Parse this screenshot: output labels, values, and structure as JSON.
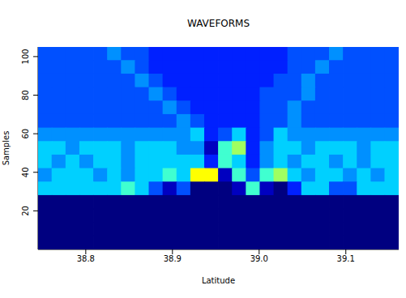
{
  "chart_data": {
    "type": "heatmap",
    "title": "WAVEFORMS",
    "x_label": "Latitude",
    "y_label": "Samples",
    "xlim": [
      38.745,
      39.161
    ],
    "xticks": [
      38.8,
      38.9,
      {
        "value": 39,
        "label": "39.0"
      },
      39.1
    ],
    "ylim": [
      0,
      105
    ],
    "yticks": [
      20,
      40,
      60,
      80,
      100
    ],
    "x": [
      38.753,
      38.769,
      38.785,
      38.801,
      38.817,
      38.833,
      38.849,
      38.865,
      38.881,
      38.897,
      38.913,
      38.929,
      38.945,
      38.961,
      38.977,
      38.993,
      39.009,
      39.025,
      39.041,
      39.057,
      39.073,
      39.089,
      39.105,
      39.121,
      39.137,
      39.153
    ],
    "y": [
      101.5,
      94.5,
      87.5,
      80.5,
      73.5,
      66.5,
      59.5,
      52.5,
      45.5,
      38.5,
      31.5,
      24.5,
      17.5,
      10.5,
      3.5
    ],
    "zlim": [
      0,
      9
    ],
    "cells": [
      [
        3,
        3,
        3,
        3,
        3,
        4,
        3,
        3,
        2,
        2,
        2,
        2,
        2,
        2,
        2,
        2,
        2,
        2,
        3,
        3,
        3,
        4,
        3,
        3,
        3,
        3
      ],
      [
        3,
        3,
        3,
        3,
        3,
        3,
        4,
        3,
        2,
        2,
        2,
        2,
        2,
        2,
        2,
        2,
        2,
        2,
        3,
        3,
        4,
        3,
        3,
        3,
        3,
        3
      ],
      [
        3,
        3,
        3,
        3,
        3,
        3,
        3,
        4,
        3,
        2,
        2,
        2,
        2,
        2,
        2,
        2,
        2,
        3,
        3,
        4,
        3,
        3,
        3,
        3,
        3,
        3
      ],
      [
        3,
        3,
        3,
        3,
        3,
        3,
        3,
        3,
        4,
        3,
        2,
        2,
        2,
        2,
        2,
        2,
        3,
        3,
        3,
        4,
        3,
        3,
        3,
        3,
        3,
        3
      ],
      [
        3,
        3,
        3,
        3,
        3,
        3,
        3,
        3,
        3,
        4,
        3,
        2,
        2,
        2,
        2,
        2,
        3,
        3,
        4,
        3,
        3,
        3,
        3,
        3,
        3,
        3
      ],
      [
        3,
        3,
        3,
        3,
        3,
        3,
        3,
        3,
        3,
        3,
        4,
        3,
        2,
        2,
        2,
        2,
        3,
        3,
        4,
        3,
        3,
        3,
        3,
        3,
        3,
        3
      ],
      [
        4,
        4,
        4,
        4,
        4,
        4,
        4,
        4,
        4,
        4,
        4,
        5,
        2,
        3,
        5,
        2,
        3,
        5,
        4,
        4,
        4,
        4,
        4,
        4,
        4,
        4
      ],
      [
        5,
        5,
        4,
        5,
        5,
        5,
        4,
        5,
        5,
        5,
        4,
        4,
        1,
        6,
        7,
        2,
        4,
        5,
        5,
        4,
        5,
        5,
        5,
        4,
        5,
        5
      ],
      [
        5,
        4,
        5,
        4,
        5,
        5,
        4,
        5,
        5,
        5,
        5,
        5,
        2,
        6,
        5,
        2,
        4,
        5,
        4,
        5,
        5,
        4,
        5,
        4,
        5,
        5
      ],
      [
        4,
        5,
        5,
        5,
        4,
        5,
        4,
        5,
        5,
        6,
        5,
        8,
        8,
        1,
        6,
        3,
        6,
        7,
        5,
        4,
        5,
        5,
        4,
        5,
        4,
        5
      ],
      [
        5,
        5,
        5,
        5,
        5,
        5,
        6,
        5,
        3,
        1,
        3,
        0,
        0,
        0,
        1,
        6,
        1,
        0,
        2,
        5,
        5,
        3,
        3,
        5,
        5,
        5
      ],
      [
        0,
        0,
        0,
        0,
        0,
        0,
        0,
        0,
        0,
        0,
        0,
        0,
        0,
        0,
        0,
        0,
        0,
        0,
        0,
        0,
        0,
        0,
        0,
        0,
        0,
        0
      ],
      [
        0,
        0,
        0,
        0,
        0,
        0,
        0,
        0,
        0,
        0,
        0,
        0,
        0,
        0,
        0,
        0,
        0,
        0,
        0,
        0,
        0,
        0,
        0,
        0,
        0,
        0
      ],
      [
        0,
        0,
        0,
        0,
        0,
        0,
        0,
        0,
        0,
        0,
        0,
        0,
        0,
        0,
        0,
        0,
        0,
        0,
        0,
        0,
        0,
        0,
        0,
        0,
        0,
        0
      ],
      [
        0,
        0,
        0,
        0,
        0,
        0,
        0,
        0,
        0,
        0,
        0,
        0,
        0,
        0,
        0,
        0,
        0,
        0,
        0,
        0,
        0,
        0,
        0,
        0,
        0,
        0
      ]
    ]
  }
}
